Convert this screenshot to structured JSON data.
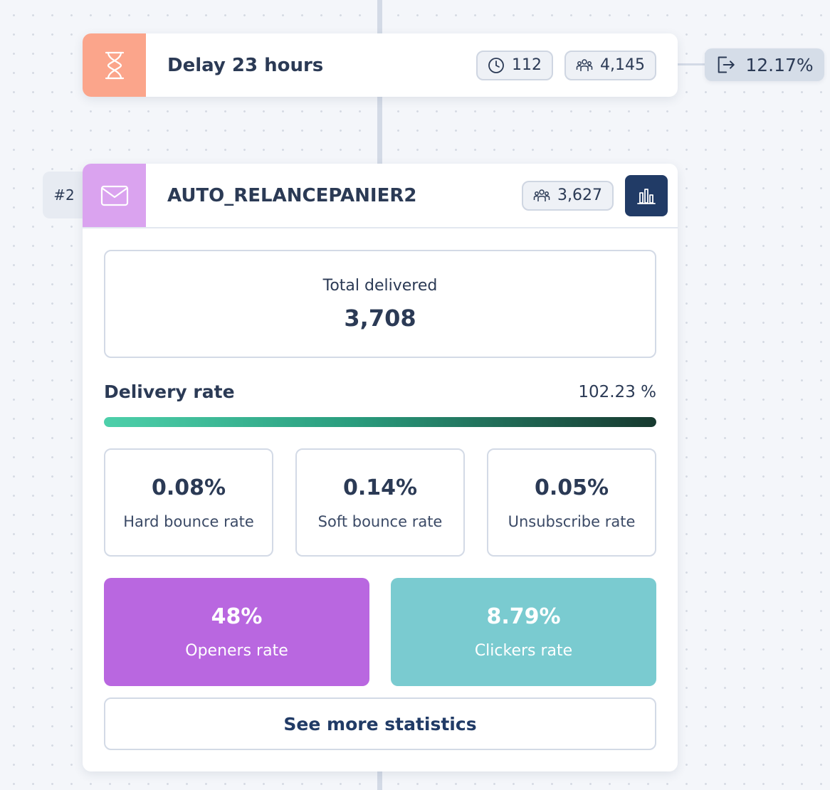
{
  "delay_node": {
    "title": "Delay 23 hours",
    "waiting_count": "112",
    "contacts_count": "4,145",
    "icon": "hourglass-icon",
    "color": "#fba58b"
  },
  "exit_badge": {
    "value": "12.17%",
    "icon": "exit-icon"
  },
  "email_node": {
    "step_number": "#2",
    "title": "AUTO_RELANCEPANIER2",
    "contacts_count": "3,627",
    "icon": "envelope-icon",
    "color": "#daa3ef",
    "stats": {
      "total_delivered_label": "Total delivered",
      "total_delivered_value": "3,708",
      "delivery_rate_label": "Delivery rate",
      "delivery_rate_value": "102.23 %",
      "delivery_rate_fraction": 1.0,
      "metrics": [
        {
          "value": "0.08%",
          "label": "Hard bounce rate"
        },
        {
          "value": "0.14%",
          "label": "Soft bounce rate"
        },
        {
          "value": "0.05%",
          "label": "Unsubscribe rate"
        }
      ],
      "openers": {
        "value": "48%",
        "label": "Openers rate",
        "color": "#b967e0"
      },
      "clickers": {
        "value": "8.79%",
        "label": "Clickers rate",
        "color": "#7acbd0"
      },
      "see_more_label": "See more statistics"
    }
  }
}
